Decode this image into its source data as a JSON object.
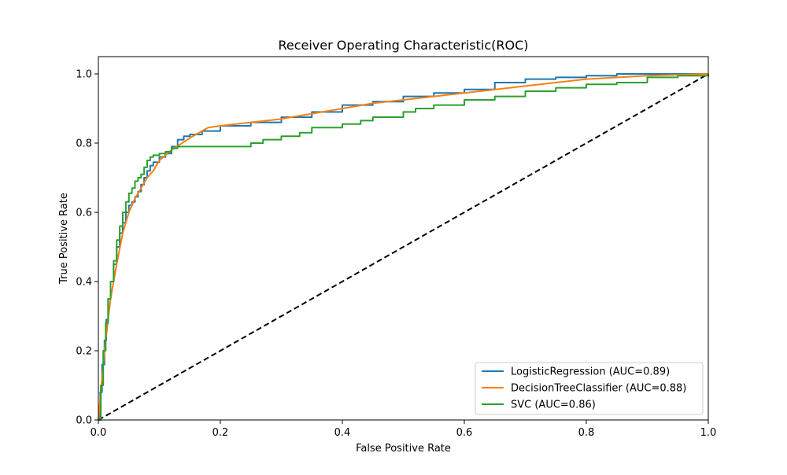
{
  "chart_data": {
    "type": "line",
    "title": "Receiver Operating Characteristic(ROC)",
    "xlabel": "False Positive Rate",
    "ylabel": "True Positive Rate",
    "xlim": [
      0.0,
      1.0
    ],
    "ylim": [
      0.0,
      1.05
    ],
    "xticks": [
      "0.0",
      "0.2",
      "0.4",
      "0.6",
      "0.8",
      "1.0"
    ],
    "yticks": [
      "0.0",
      "0.2",
      "0.4",
      "0.6",
      "0.8",
      "1.0"
    ],
    "grid": false,
    "legend_position": "lower-right",
    "series": [
      {
        "name": "LogisticRegression (AUC=0.89)",
        "color": "#1f77b4",
        "style": "step",
        "x": [
          0.0,
          0.003,
          0.006,
          0.01,
          0.013,
          0.016,
          0.02,
          0.025,
          0.03,
          0.035,
          0.04,
          0.045,
          0.05,
          0.055,
          0.06,
          0.065,
          0.07,
          0.075,
          0.08,
          0.085,
          0.09,
          0.1,
          0.11,
          0.12,
          0.13,
          0.14,
          0.15,
          0.17,
          0.2,
          0.25,
          0.3,
          0.35,
          0.4,
          0.45,
          0.5,
          0.55,
          0.6,
          0.65,
          0.7,
          0.75,
          0.8,
          0.85,
          0.9,
          0.95,
          1.0
        ],
        "y": [
          0.0,
          0.08,
          0.16,
          0.23,
          0.29,
          0.35,
          0.4,
          0.45,
          0.5,
          0.54,
          0.57,
          0.6,
          0.62,
          0.63,
          0.645,
          0.66,
          0.68,
          0.7,
          0.72,
          0.735,
          0.745,
          0.76,
          0.77,
          0.79,
          0.81,
          0.82,
          0.825,
          0.835,
          0.85,
          0.86,
          0.875,
          0.89,
          0.91,
          0.92,
          0.935,
          0.945,
          0.955,
          0.975,
          0.985,
          0.99,
          0.995,
          1.0,
          1.0,
          1.0,
          1.0
        ]
      },
      {
        "name": "DecisionTreeClassifier (AUC=0.88)",
        "color": "#ff7f0e",
        "style": "line",
        "x": [
          0.0,
          0.005,
          0.01,
          0.02,
          0.03,
          0.04,
          0.05,
          0.06,
          0.07,
          0.08,
          0.09,
          0.1,
          0.12,
          0.15,
          0.18,
          0.2,
          0.25,
          0.3,
          0.35,
          0.4,
          0.45,
          0.5,
          0.6,
          0.7,
          0.8,
          0.9,
          1.0
        ],
        "y": [
          0.0,
          0.1,
          0.2,
          0.35,
          0.45,
          0.54,
          0.6,
          0.64,
          0.67,
          0.7,
          0.72,
          0.75,
          0.78,
          0.815,
          0.845,
          0.85,
          0.86,
          0.87,
          0.885,
          0.9,
          0.915,
          0.925,
          0.945,
          0.965,
          0.985,
          0.995,
          1.0
        ]
      },
      {
        "name": "SVC (AUC=0.86)",
        "color": "#2ca02c",
        "style": "step",
        "x": [
          0.0,
          0.004,
          0.008,
          0.012,
          0.016,
          0.02,
          0.025,
          0.03,
          0.035,
          0.04,
          0.045,
          0.05,
          0.055,
          0.06,
          0.065,
          0.07,
          0.075,
          0.08,
          0.085,
          0.09,
          0.1,
          0.11,
          0.12,
          0.13,
          0.16,
          0.2,
          0.24,
          0.25,
          0.27,
          0.3,
          0.33,
          0.35,
          0.4,
          0.43,
          0.45,
          0.5,
          0.52,
          0.55,
          0.6,
          0.65,
          0.7,
          0.75,
          0.8,
          0.85,
          0.9,
          0.95,
          1.0
        ],
        "y": [
          0.0,
          0.1,
          0.2,
          0.28,
          0.35,
          0.4,
          0.46,
          0.52,
          0.56,
          0.6,
          0.63,
          0.655,
          0.67,
          0.69,
          0.7,
          0.71,
          0.73,
          0.75,
          0.76,
          0.765,
          0.77,
          0.775,
          0.785,
          0.79,
          0.79,
          0.79,
          0.79,
          0.8,
          0.81,
          0.82,
          0.83,
          0.845,
          0.855,
          0.865,
          0.875,
          0.89,
          0.9,
          0.91,
          0.925,
          0.935,
          0.95,
          0.96,
          0.97,
          0.975,
          0.99,
          0.995,
          1.0
        ]
      }
    ],
    "reference_line": {
      "color": "#000000",
      "dash": "dashed",
      "x": [
        0.0,
        1.0
      ],
      "y": [
        0.0,
        1.0
      ]
    }
  }
}
